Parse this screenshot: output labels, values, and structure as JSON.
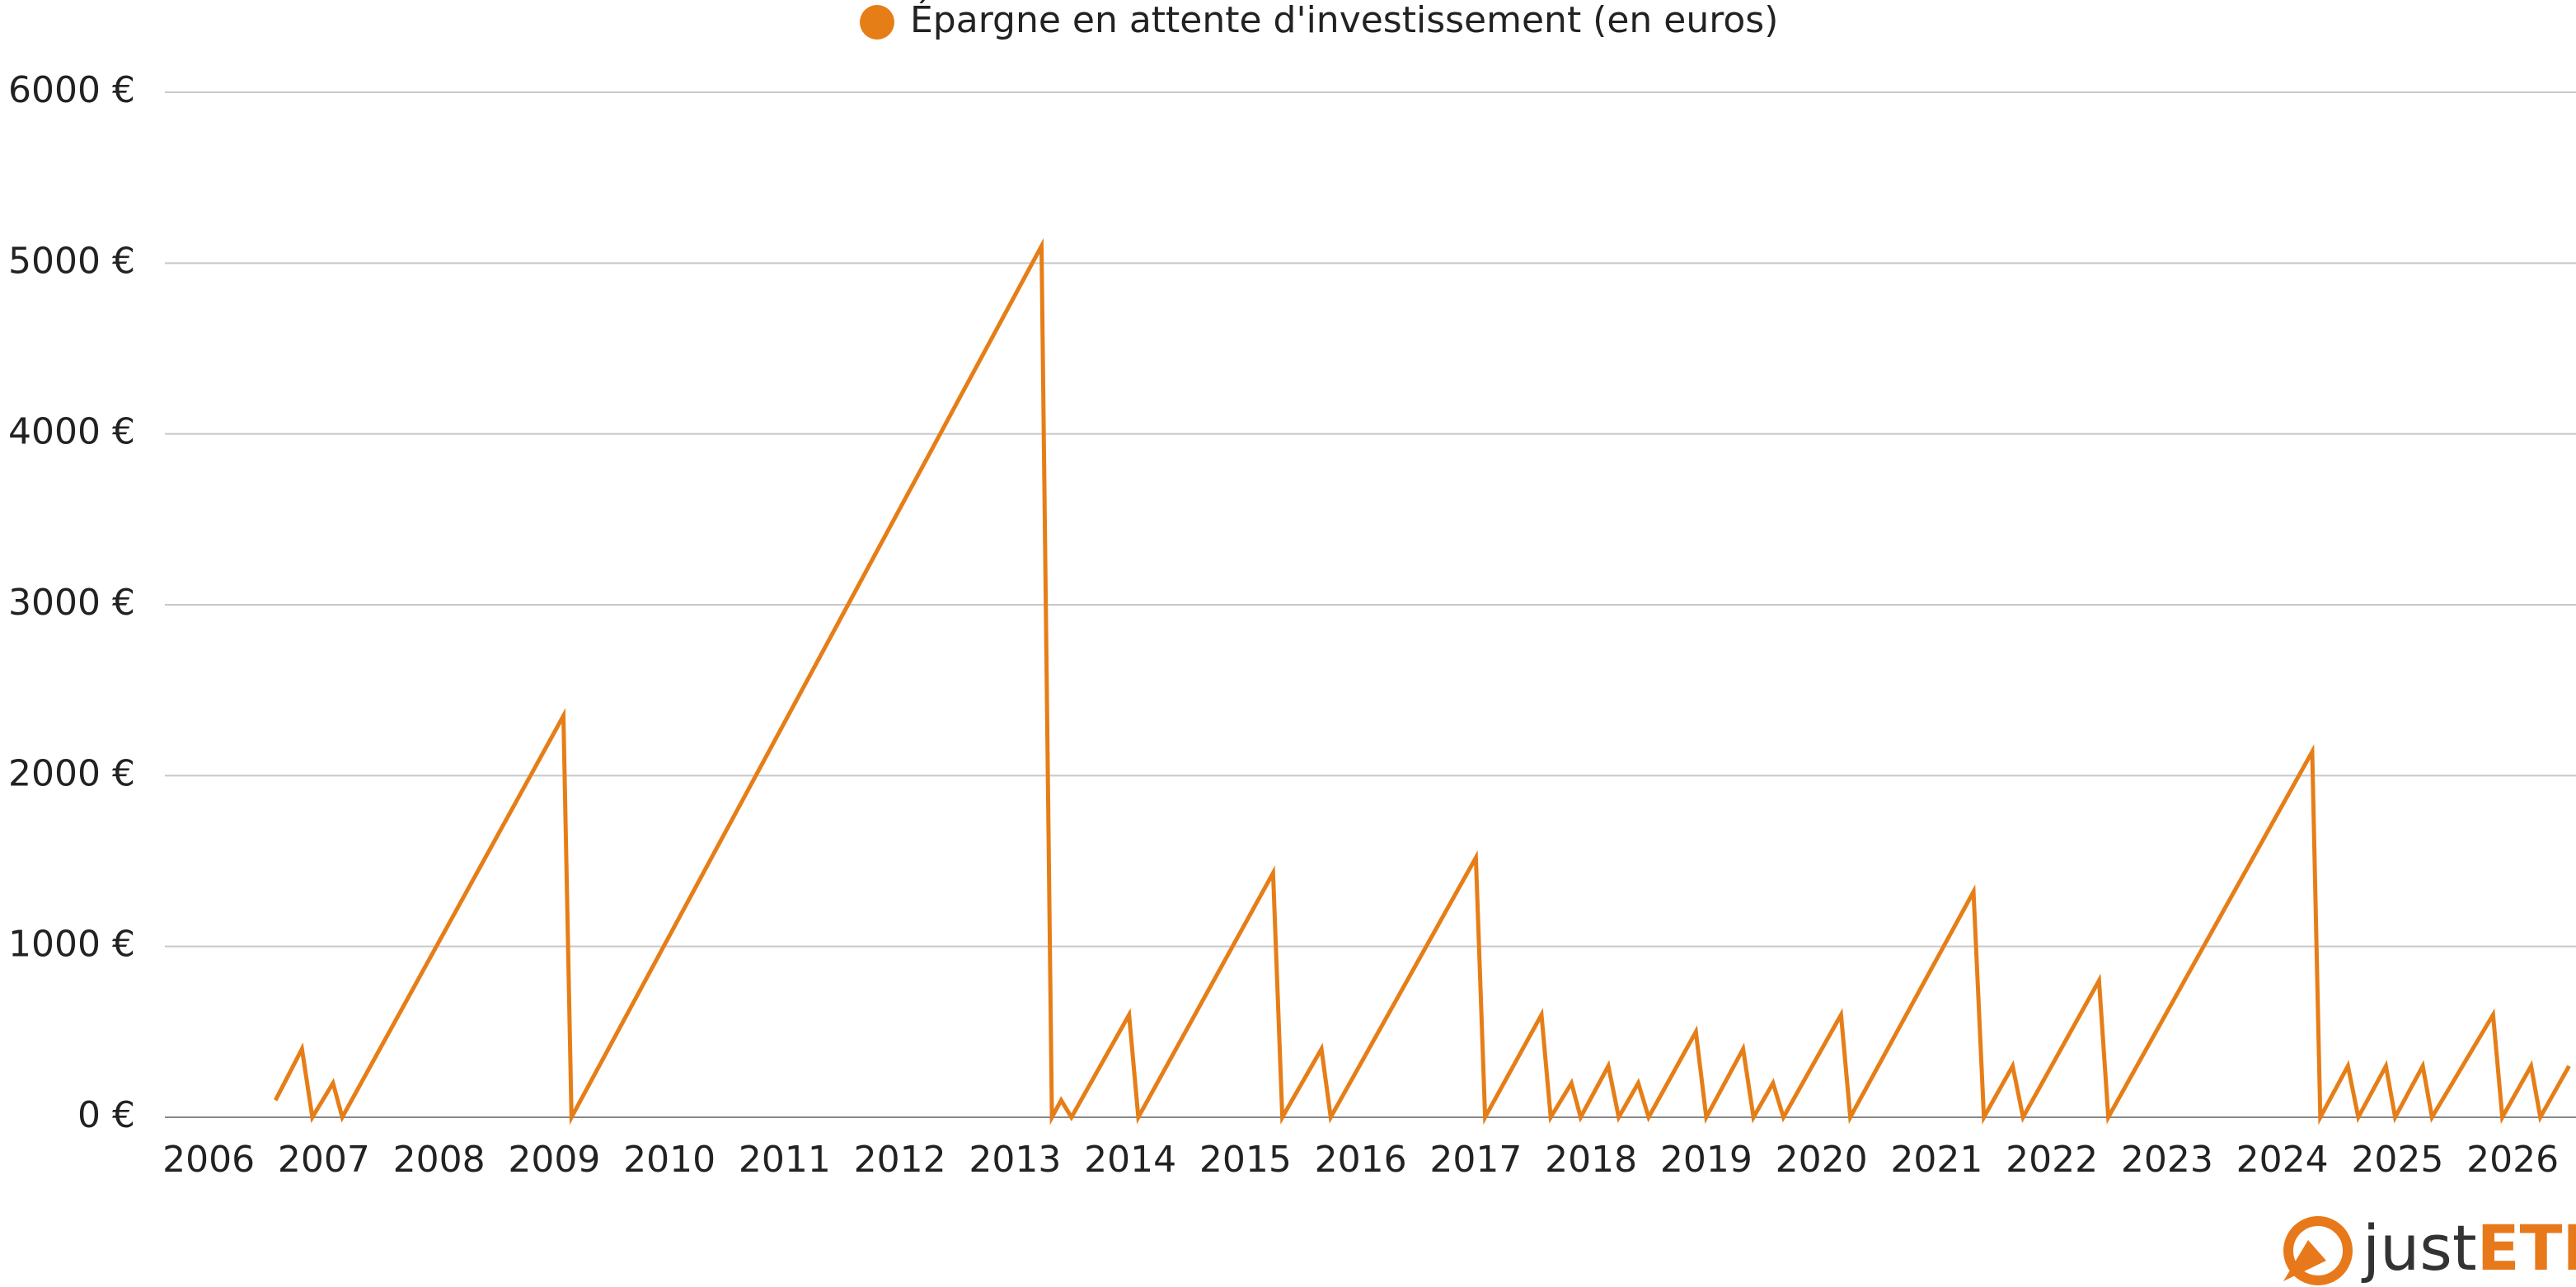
{
  "chart_data": {
    "type": "line",
    "legend_position": "top",
    "grid": true,
    "x": [
      2006.58,
      2006.81,
      2006.9,
      2007.08,
      2007.16,
      2009.08,
      2009.15,
      2013.23,
      2013.32,
      2013.4,
      2013.49,
      2013.99,
      2014.07,
      2015.24,
      2015.32,
      2015.66,
      2015.74,
      2017.0,
      2017.08,
      2017.57,
      2017.65,
      2017.83,
      2017.91,
      2018.15,
      2018.24,
      2018.41,
      2018.5,
      2018.91,
      2019.0,
      2019.32,
      2019.41,
      2019.58,
      2019.67,
      2020.17,
      2020.25,
      2021.32,
      2021.41,
      2021.66,
      2021.75,
      2022.41,
      2022.49,
      2024.26,
      2024.33,
      2024.57,
      2024.66,
      2024.9,
      2024.98,
      2025.22,
      2025.3,
      2025.83,
      2025.91,
      2026.16,
      2026.24,
      2026.49
    ],
    "series": [
      {
        "name": "Épargne en attente d'investissement (en euros)",
        "color": "#e67e17",
        "values": [
          100,
          400,
          0,
          200,
          0,
          2350,
          0,
          5100,
          0,
          100,
          0,
          600,
          0,
          1430,
          0,
          400,
          0,
          1520,
          0,
          600,
          0,
          200,
          0,
          300,
          0,
          200,
          0,
          500,
          0,
          400,
          0,
          200,
          0,
          600,
          0,
          1320,
          0,
          300,
          0,
          800,
          0,
          2140,
          0,
          300,
          0,
          300,
          0,
          300,
          0,
          600,
          0,
          300,
          0,
          300
        ]
      }
    ],
    "xlim": [
      2005.62,
      2026.55
    ],
    "xticks": [
      2006,
      2007,
      2008,
      2009,
      2010,
      2011,
      2012,
      2013,
      2014,
      2015,
      2016,
      2017,
      2018,
      2019,
      2020,
      2021,
      2022,
      2023,
      2024,
      2025,
      2026
    ],
    "ylim": [
      0,
      6000
    ],
    "yticks": [
      {
        "value": 0,
        "label": "0 €"
      },
      {
        "value": 1000,
        "label": "1000 €"
      },
      {
        "value": 2000,
        "label": "2000 €"
      },
      {
        "value": 3000,
        "label": "3000 €"
      },
      {
        "value": 4000,
        "label": "4000 €"
      },
      {
        "value": 5000,
        "label": "5000 €"
      },
      {
        "value": 6000,
        "label": "6000 €"
      }
    ]
  },
  "logo": {
    "prefix": "just",
    "suffix": "ETF"
  }
}
